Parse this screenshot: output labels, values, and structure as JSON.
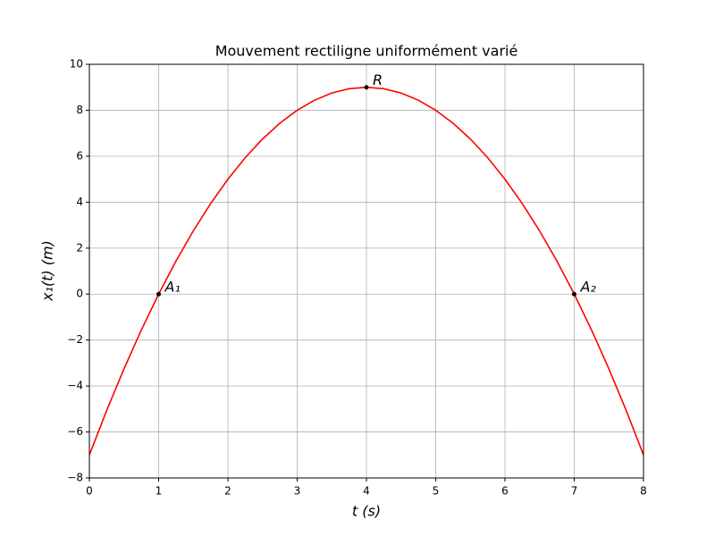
{
  "chart_data": {
    "type": "line",
    "title": "Mouvement rectiligne uniformément varié",
    "xlabel": "t   (s)",
    "ylabel": "x₁(t)   (m)",
    "xlim": [
      0,
      8
    ],
    "ylim": [
      -8,
      10
    ],
    "xticks": [
      0,
      1,
      2,
      3,
      4,
      5,
      6,
      7,
      8
    ],
    "yticks": [
      {
        "value": -8,
        "label": "−8"
      },
      {
        "value": -6,
        "label": "−6"
      },
      {
        "value": -4,
        "label": "−4"
      },
      {
        "value": -2,
        "label": "−2"
      },
      0,
      2,
      4,
      6,
      8,
      10
    ],
    "grid": true,
    "series": [
      {
        "color": "#ff0000",
        "mode": "line",
        "x": [
          0,
          0.25,
          0.5,
          0.75,
          1,
          1.25,
          1.5,
          1.75,
          2,
          2.25,
          2.5,
          2.75,
          3,
          3.25,
          3.5,
          3.75,
          4,
          4.25,
          4.5,
          4.75,
          5,
          5.25,
          5.5,
          5.75,
          6,
          6.25,
          6.5,
          6.75,
          7,
          7.25,
          7.5,
          7.75,
          8
        ],
        "values": [
          -7,
          -5.0625,
          -3.25,
          -1.5625,
          0,
          1.4375,
          2.75,
          3.9375,
          5,
          5.9375,
          6.75,
          7.4375,
          8,
          8.4375,
          8.75,
          8.9375,
          9,
          8.9375,
          8.75,
          8.4375,
          8,
          7.4375,
          6.75,
          5.9375,
          5,
          3.9375,
          2.75,
          1.4375,
          0,
          -1.5625,
          -3.25,
          -5.0625,
          -7
        ]
      },
      {
        "color": "#000000",
        "mode": "points",
        "x": [
          1,
          4,
          7
        ],
        "values": [
          0,
          9,
          0
        ],
        "labels": [
          "A₁",
          "R",
          "A₂"
        ]
      }
    ]
  }
}
